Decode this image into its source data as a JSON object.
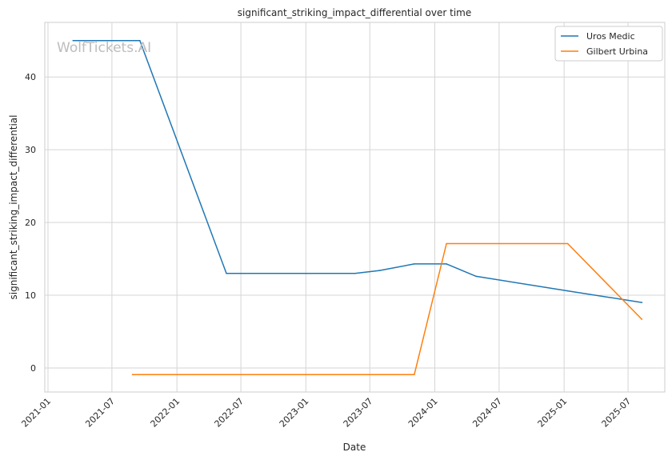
{
  "chart_data": {
    "type": "line",
    "title": "significant_striking_impact_differential over time",
    "xlabel": "Date",
    "ylabel": "significant_striking_impact_differential",
    "watermark": "WolfTickets.AI",
    "grid": true,
    "legend_position": "top-right",
    "xlim": [
      "2020-12-23",
      "2025-10-13"
    ],
    "ylim": [
      -3.3,
      47.5
    ],
    "x_ticks": [
      "2021-01",
      "2021-07",
      "2022-01",
      "2022-07",
      "2023-01",
      "2023-07",
      "2024-01",
      "2024-07",
      "2025-01",
      "2025-07"
    ],
    "y_ticks": [
      0,
      10,
      20,
      30,
      40
    ],
    "series": [
      {
        "name": "Uros Medic",
        "color": "#1f77b4",
        "points": [
          {
            "x": "2021-03-13",
            "y": 45.0
          },
          {
            "x": "2021-09-18",
            "y": 45.0
          },
          {
            "x": "2022-05-21",
            "y": 13.0
          },
          {
            "x": "2023-05-20",
            "y": 13.0
          },
          {
            "x": "2023-07-29",
            "y": 13.4
          },
          {
            "x": "2023-11-04",
            "y": 14.3
          },
          {
            "x": "2024-02-03",
            "y": 14.3
          },
          {
            "x": "2024-04-27",
            "y": 12.6
          },
          {
            "x": "2025-01-11",
            "y": 10.6
          },
          {
            "x": "2025-08-09",
            "y": 9.0
          }
        ]
      },
      {
        "name": "Gilbert Urbina",
        "color": "#ff7f0e",
        "points": [
          {
            "x": "2021-08-28",
            "y": -0.9
          },
          {
            "x": "2023-11-04",
            "y": -0.9
          },
          {
            "x": "2024-02-03",
            "y": 17.1
          },
          {
            "x": "2025-01-11",
            "y": 17.1
          },
          {
            "x": "2025-08-09",
            "y": 6.7
          }
        ]
      }
    ]
  }
}
